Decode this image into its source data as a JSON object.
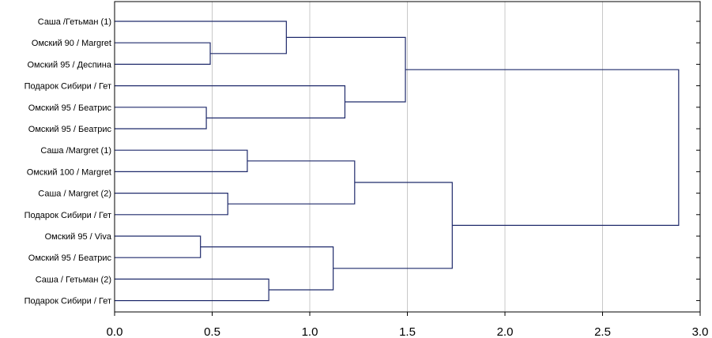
{
  "chart_data": {
    "type": "dendrogram",
    "orientation": "horizontal",
    "xlim": [
      0.0,
      3.0
    ],
    "x_ticks": [
      "0.0",
      "0.5",
      "1.0",
      "1.5",
      "2.0",
      "2.5",
      "3.0"
    ],
    "x_tick_values": [
      0.0,
      0.5,
      1.0,
      1.5,
      2.0,
      2.5,
      3.0
    ],
    "grid": true,
    "line_color": "#1f2a6b",
    "grid_color": "#c8c8c8",
    "leaves": [
      "Саша /Гетьман (1)",
      "Омский 90 / Margret",
      "Омский 95 / Деспина",
      "Подарок Сибири / Гет",
      "Омский 95 / Беатрис",
      "Омский 95 / Беатрис",
      "Саша /Margret (1)",
      "Омский 100 / Margret",
      "Саша / Margret (2)",
      "Подарок Сибири / Гет",
      "Омский 95 / Viva",
      "Омский 95 / Беатрис",
      "Саша / Гетьман (2)",
      "Подарок Сибири / Гет"
    ],
    "merges": [
      {
        "left": "L1",
        "right": "L2",
        "height": 0.49
      },
      {
        "left": "L0",
        "right": "M0",
        "height": 0.88
      },
      {
        "left": "L4",
        "right": "L5",
        "height": 0.47
      },
      {
        "left": "L3",
        "right": "M2",
        "height": 1.18
      },
      {
        "left": "M1",
        "right": "M3",
        "height": 1.49
      },
      {
        "left": "L6",
        "right": "L7",
        "height": 0.68
      },
      {
        "left": "L8",
        "right": "L9",
        "height": 0.58
      },
      {
        "left": "M5",
        "right": "M6",
        "height": 1.23
      },
      {
        "left": "L10",
        "right": "L11",
        "height": 0.44
      },
      {
        "left": "L12",
        "right": "L13",
        "height": 0.79
      },
      {
        "left": "M8",
        "right": "M9",
        "height": 1.12
      },
      {
        "left": "M7",
        "right": "M10",
        "height": 1.73
      },
      {
        "left": "M4",
        "right": "M11",
        "height": 2.89
      }
    ]
  }
}
